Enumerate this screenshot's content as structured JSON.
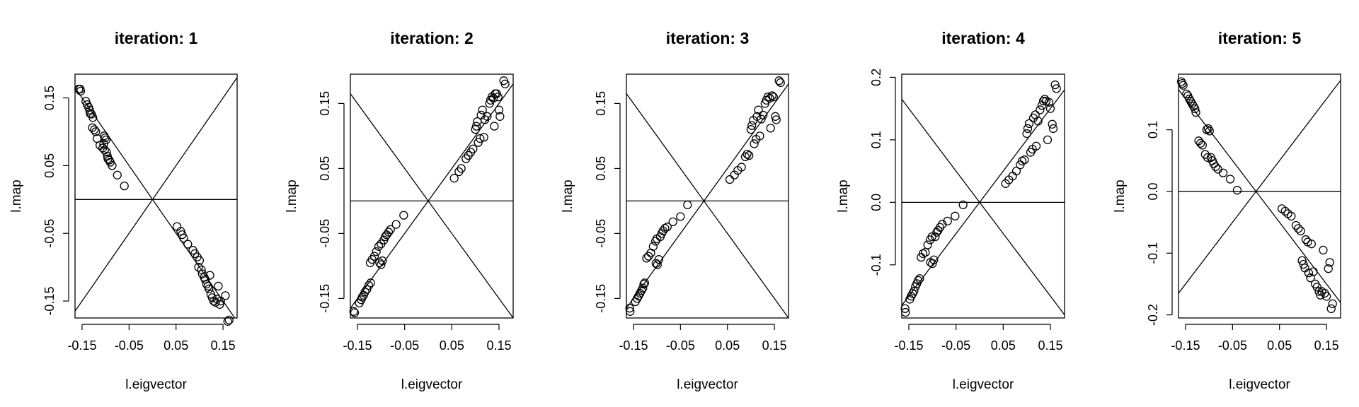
{
  "chart_data": [
    {
      "type": "scatter",
      "title": "iteration: 1",
      "xlabel": "l.eigvector",
      "ylabel": "l.map",
      "xlim": [
        -0.165,
        0.18
      ],
      "ylim": [
        -0.175,
        0.185
      ],
      "xticks": [
        "-0.15",
        "-0.05",
        "0.05",
        "0.15"
      ],
      "xtick_values": [
        -0.15,
        -0.05,
        0.05,
        0.15
      ],
      "yticks": [
        "-0.15",
        "-0.05",
        "0.05",
        "0.15"
      ],
      "ytick_values": [
        -0.15,
        -0.05,
        0.05,
        0.15
      ],
      "reference_lines": {
        "horizontal_y": 0,
        "diagonal_slopes": [
          1,
          -1
        ]
      },
      "points": [
        [
          -0.157,
          0.163
        ],
        [
          -0.154,
          0.163
        ],
        [
          -0.153,
          0.16
        ],
        [
          -0.142,
          0.145
        ],
        [
          -0.139,
          0.14
        ],
        [
          -0.136,
          0.136
        ],
        [
          -0.134,
          0.132
        ],
        [
          -0.133,
          0.127
        ],
        [
          -0.13,
          0.126
        ],
        [
          -0.127,
          0.121
        ],
        [
          -0.128,
          0.106
        ],
        [
          -0.124,
          0.103
        ],
        [
          -0.121,
          0.1
        ],
        [
          -0.118,
          0.09
        ],
        [
          -0.112,
          0.08
        ],
        [
          -0.106,
          0.076
        ],
        [
          -0.104,
          0.082
        ],
        [
          -0.103,
          0.094
        ],
        [
          -0.101,
          0.091
        ],
        [
          -0.099,
          0.088
        ],
        [
          -0.102,
          0.073
        ],
        [
          -0.098,
          0.07
        ],
        [
          -0.096,
          0.064
        ],
        [
          -0.095,
          0.06
        ],
        [
          -0.092,
          0.058
        ],
        [
          -0.09,
          0.055
        ],
        [
          -0.086,
          0.05
        ],
        [
          -0.075,
          0.036
        ],
        [
          -0.06,
          0.02
        ],
        [
          0.052,
          -0.04
        ],
        [
          0.06,
          -0.047
        ],
        [
          0.063,
          -0.052
        ],
        [
          0.066,
          -0.057
        ],
        [
          0.075,
          -0.066
        ],
        [
          0.086,
          -0.075
        ],
        [
          0.09,
          -0.08
        ],
        [
          0.095,
          -0.085
        ],
        [
          0.1,
          -0.09
        ],
        [
          0.098,
          -0.1
        ],
        [
          0.104,
          -0.104
        ],
        [
          0.106,
          -0.11
        ],
        [
          0.11,
          -0.115
        ],
        [
          0.112,
          -0.118
        ],
        [
          0.115,
          -0.125
        ],
        [
          0.118,
          -0.128
        ],
        [
          0.12,
          -0.132
        ],
        [
          0.122,
          -0.112
        ],
        [
          0.124,
          -0.14
        ],
        [
          0.127,
          -0.145
        ],
        [
          0.13,
          -0.15
        ],
        [
          0.134,
          -0.152
        ],
        [
          0.137,
          -0.147
        ],
        [
          0.14,
          -0.128
        ],
        [
          0.143,
          -0.155
        ],
        [
          0.145,
          -0.15
        ],
        [
          0.155,
          -0.142
        ],
        [
          0.16,
          -0.18
        ],
        [
          0.163,
          -0.178
        ]
      ]
    },
    {
      "type": "scatter",
      "title": "iteration: 2",
      "xlabel": "l.eigvector",
      "ylabel": "l.map",
      "xlim": [
        -0.165,
        0.18
      ],
      "ylim": [
        -0.18,
        0.195
      ],
      "xticks": [
        "-0.15",
        "-0.05",
        "0.05",
        "0.15"
      ],
      "xtick_values": [
        -0.15,
        -0.05,
        0.05,
        0.15
      ],
      "yticks": [
        "-0.15",
        "-0.05",
        "0.05",
        "0.15"
      ],
      "ytick_values": [
        -0.15,
        -0.05,
        0.05,
        0.15
      ],
      "reference_lines": {
        "horizontal_y": 0,
        "diagonal_slopes": [
          1,
          -1
        ]
      },
      "points": [
        [
          -0.158,
          -0.17
        ],
        [
          -0.156,
          -0.172
        ],
        [
          -0.146,
          -0.157
        ],
        [
          -0.142,
          -0.152
        ],
        [
          -0.14,
          -0.148
        ],
        [
          -0.137,
          -0.145
        ],
        [
          -0.134,
          -0.14
        ],
        [
          -0.13,
          -0.136
        ],
        [
          -0.126,
          -0.13
        ],
        [
          -0.122,
          -0.126
        ],
        [
          -0.123,
          -0.095
        ],
        [
          -0.119,
          -0.09
        ],
        [
          -0.114,
          -0.085
        ],
        [
          -0.11,
          -0.078
        ],
        [
          -0.105,
          -0.07
        ],
        [
          -0.1,
          -0.066
        ],
        [
          -0.103,
          -0.095
        ],
        [
          -0.1,
          -0.098
        ],
        [
          -0.097,
          -0.092
        ],
        [
          -0.094,
          -0.06
        ],
        [
          -0.091,
          -0.055
        ],
        [
          -0.088,
          -0.052
        ],
        [
          -0.084,
          -0.048
        ],
        [
          -0.08,
          -0.044
        ],
        [
          -0.068,
          -0.036
        ],
        [
          -0.052,
          -0.022
        ],
        [
          0.055,
          0.035
        ],
        [
          0.065,
          0.045
        ],
        [
          0.07,
          0.05
        ],
        [
          0.08,
          0.065
        ],
        [
          0.085,
          0.07
        ],
        [
          0.09,
          0.075
        ],
        [
          0.095,
          0.08
        ],
        [
          0.1,
          0.11
        ],
        [
          0.102,
          0.115
        ],
        [
          0.104,
          0.122
        ],
        [
          0.106,
          0.09
        ],
        [
          0.11,
          0.096
        ],
        [
          0.112,
          0.132
        ],
        [
          0.115,
          0.14
        ],
        [
          0.118,
          0.098
        ],
        [
          0.12,
          0.125
        ],
        [
          0.125,
          0.13
        ],
        [
          0.13,
          0.15
        ],
        [
          0.132,
          0.155
        ],
        [
          0.135,
          0.16
        ],
        [
          0.138,
          0.158
        ],
        [
          0.14,
          0.115
        ],
        [
          0.142,
          0.165
        ],
        [
          0.145,
          0.165
        ],
        [
          0.148,
          0.16
        ],
        [
          0.15,
          0.14
        ],
        [
          0.152,
          0.13
        ],
        [
          0.16,
          0.185
        ],
        [
          0.163,
          0.18
        ]
      ]
    },
    {
      "type": "scatter",
      "title": "iteration: 3",
      "xlabel": "l.eigvector",
      "ylabel": "l.map",
      "xlim": [
        -0.165,
        0.18
      ],
      "ylim": [
        -0.18,
        0.195
      ],
      "xticks": [
        "-0.15",
        "-0.05",
        "0.05",
        "0.15"
      ],
      "xtick_values": [
        -0.15,
        -0.05,
        0.05,
        0.15
      ],
      "yticks": [
        "-0.15",
        "-0.05",
        "0.05",
        "0.15"
      ],
      "ytick_values": [
        -0.15,
        -0.05,
        0.05,
        0.15
      ],
      "reference_lines": {
        "horizontal_y": 0,
        "diagonal_slopes": [
          1,
          -1
        ]
      },
      "points": [
        [
          -0.158,
          -0.165
        ],
        [
          -0.157,
          -0.17
        ],
        [
          -0.146,
          -0.155
        ],
        [
          -0.142,
          -0.15
        ],
        [
          -0.139,
          -0.146
        ],
        [
          -0.136,
          -0.142
        ],
        [
          -0.133,
          -0.138
        ],
        [
          -0.13,
          -0.134
        ],
        [
          -0.128,
          -0.128
        ],
        [
          -0.126,
          -0.126
        ],
        [
          -0.122,
          -0.088
        ],
        [
          -0.118,
          -0.085
        ],
        [
          -0.113,
          -0.08
        ],
        [
          -0.108,
          -0.07
        ],
        [
          -0.103,
          -0.062
        ],
        [
          -0.1,
          -0.058
        ],
        [
          -0.102,
          -0.096
        ],
        [
          -0.099,
          -0.098
        ],
        [
          -0.096,
          -0.09
        ],
        [
          -0.093,
          -0.055
        ],
        [
          -0.09,
          -0.05
        ],
        [
          -0.087,
          -0.046
        ],
        [
          -0.083,
          -0.042
        ],
        [
          -0.078,
          -0.04
        ],
        [
          -0.066,
          -0.032
        ],
        [
          -0.05,
          -0.024
        ],
        [
          -0.035,
          -0.006
        ],
        [
          0.055,
          0.033
        ],
        [
          0.065,
          0.04
        ],
        [
          0.072,
          0.047
        ],
        [
          0.08,
          0.052
        ],
        [
          0.088,
          0.068
        ],
        [
          0.092,
          0.072
        ],
        [
          0.096,
          0.07
        ],
        [
          0.1,
          0.11
        ],
        [
          0.102,
          0.116
        ],
        [
          0.105,
          0.124
        ],
        [
          0.107,
          0.088
        ],
        [
          0.111,
          0.095
        ],
        [
          0.113,
          0.13
        ],
        [
          0.116,
          0.14
        ],
        [
          0.119,
          0.1
        ],
        [
          0.122,
          0.126
        ],
        [
          0.126,
          0.132
        ],
        [
          0.13,
          0.15
        ],
        [
          0.133,
          0.155
        ],
        [
          0.136,
          0.16
        ],
        [
          0.14,
          0.158
        ],
        [
          0.142,
          0.112
        ],
        [
          0.145,
          0.162
        ],
        [
          0.148,
          0.16
        ],
        [
          0.152,
          0.13
        ],
        [
          0.154,
          0.125
        ],
        [
          0.16,
          0.185
        ],
        [
          0.163,
          0.182
        ]
      ]
    },
    {
      "type": "scatter",
      "title": "iteration: 4",
      "xlabel": "l.eigvector",
      "ylabel": "l.map",
      "xlim": [
        -0.165,
        0.18
      ],
      "ylim": [
        -0.185,
        0.205
      ],
      "xticks": [
        "-0.15",
        "-0.05",
        "0.05",
        "0.15"
      ],
      "xtick_values": [
        -0.15,
        -0.05,
        0.05,
        0.15
      ],
      "yticks": [
        "-0.1",
        "0.0",
        "0.1",
        "0.2"
      ],
      "ytick_values": [
        -0.1,
        0.0,
        0.1,
        0.2
      ],
      "reference_lines": {
        "horizontal_y": 0,
        "diagonal_slopes": [
          1,
          -1
        ]
      },
      "points": [
        [
          -0.158,
          -0.17
        ],
        [
          -0.157,
          -0.176
        ],
        [
          -0.148,
          -0.155
        ],
        [
          -0.145,
          -0.15
        ],
        [
          -0.142,
          -0.146
        ],
        [
          -0.139,
          -0.142
        ],
        [
          -0.136,
          -0.135
        ],
        [
          -0.133,
          -0.13
        ],
        [
          -0.13,
          -0.125
        ],
        [
          -0.127,
          -0.122
        ],
        [
          -0.124,
          -0.088
        ],
        [
          -0.12,
          -0.082
        ],
        [
          -0.115,
          -0.08
        ],
        [
          -0.11,
          -0.068
        ],
        [
          -0.105,
          -0.06
        ],
        [
          -0.101,
          -0.055
        ],
        [
          -0.104,
          -0.096
        ],
        [
          -0.1,
          -0.098
        ],
        [
          -0.097,
          -0.092
        ],
        [
          -0.094,
          -0.055
        ],
        [
          -0.091,
          -0.048
        ],
        [
          -0.088,
          -0.045
        ],
        [
          -0.084,
          -0.04
        ],
        [
          -0.079,
          -0.035
        ],
        [
          -0.068,
          -0.03
        ],
        [
          -0.052,
          -0.022
        ],
        [
          -0.035,
          -0.004
        ],
        [
          0.055,
          0.03
        ],
        [
          0.062,
          0.036
        ],
        [
          0.07,
          0.042
        ],
        [
          0.078,
          0.05
        ],
        [
          0.086,
          0.06
        ],
        [
          0.09,
          0.066
        ],
        [
          0.095,
          0.068
        ],
        [
          0.1,
          0.11
        ],
        [
          0.102,
          0.118
        ],
        [
          0.105,
          0.126
        ],
        [
          0.108,
          0.08
        ],
        [
          0.112,
          0.085
        ],
        [
          0.114,
          0.135
        ],
        [
          0.118,
          0.14
        ],
        [
          0.12,
          0.09
        ],
        [
          0.124,
          0.13
        ],
        [
          0.128,
          0.148
        ],
        [
          0.132,
          0.155
        ],
        [
          0.135,
          0.162
        ],
        [
          0.138,
          0.165
        ],
        [
          0.141,
          0.162
        ],
        [
          0.144,
          0.1
        ],
        [
          0.147,
          0.16
        ],
        [
          0.15,
          0.15
        ],
        [
          0.154,
          0.125
        ],
        [
          0.156,
          0.118
        ],
        [
          0.16,
          0.188
        ],
        [
          0.163,
          0.182
        ]
      ]
    },
    {
      "type": "scatter",
      "title": "iteration: 5",
      "xlabel": "l.eigvector",
      "ylabel": "l.map",
      "xlim": [
        -0.165,
        0.18
      ],
      "ylim": [
        -0.205,
        0.19
      ],
      "xticks": [
        "-0.15",
        "-0.05",
        "0.05",
        "0.15"
      ],
      "xtick_values": [
        -0.15,
        -0.05,
        0.05,
        0.15
      ],
      "yticks": [
        "-0.2",
        "-0.1",
        "0.0",
        "0.1"
      ],
      "ytick_values": [
        -0.2,
        -0.1,
        0.0,
        0.1
      ],
      "reference_lines": {
        "horizontal_y": 0,
        "diagonal_slopes": [
          1,
          -1
        ]
      },
      "points": [
        [
          -0.159,
          0.178
        ],
        [
          -0.157,
          0.175
        ],
        [
          -0.155,
          0.172
        ],
        [
          -0.148,
          0.158
        ],
        [
          -0.145,
          0.155
        ],
        [
          -0.142,
          0.15
        ],
        [
          -0.139,
          0.146
        ],
        [
          -0.136,
          0.142
        ],
        [
          -0.133,
          0.138
        ],
        [
          -0.13,
          0.134
        ],
        [
          -0.128,
          0.128
        ],
        [
          -0.122,
          0.082
        ],
        [
          -0.118,
          0.078
        ],
        [
          -0.114,
          0.075
        ],
        [
          -0.108,
          0.06
        ],
        [
          -0.103,
          0.055
        ],
        [
          -0.105,
          0.1
        ],
        [
          -0.102,
          0.102
        ],
        [
          -0.099,
          0.098
        ],
        [
          -0.096,
          0.055
        ],
        [
          -0.093,
          0.05
        ],
        [
          -0.09,
          0.045
        ],
        [
          -0.086,
          0.04
        ],
        [
          -0.081,
          0.036
        ],
        [
          -0.07,
          0.03
        ],
        [
          -0.055,
          0.02
        ],
        [
          -0.04,
          0.002
        ],
        [
          0.055,
          -0.028
        ],
        [
          0.062,
          -0.032
        ],
        [
          0.068,
          -0.036
        ],
        [
          0.075,
          -0.04
        ],
        [
          0.085,
          -0.055
        ],
        [
          0.09,
          -0.06
        ],
        [
          0.095,
          -0.064
        ],
        [
          0.098,
          -0.112
        ],
        [
          0.101,
          -0.118
        ],
        [
          0.104,
          -0.124
        ],
        [
          0.106,
          -0.078
        ],
        [
          0.11,
          -0.082
        ],
        [
          0.112,
          -0.132
        ],
        [
          0.116,
          -0.14
        ],
        [
          0.118,
          -0.085
        ],
        [
          0.122,
          -0.13
        ],
        [
          0.126,
          -0.15
        ],
        [
          0.13,
          -0.155
        ],
        [
          0.134,
          -0.162
        ],
        [
          0.137,
          -0.168
        ],
        [
          0.14,
          -0.162
        ],
        [
          0.143,
          -0.095
        ],
        [
          0.146,
          -0.165
        ],
        [
          0.15,
          -0.17
        ],
        [
          0.154,
          -0.125
        ],
        [
          0.157,
          -0.115
        ],
        [
          0.16,
          -0.19
        ],
        [
          0.163,
          -0.182
        ]
      ]
    }
  ]
}
